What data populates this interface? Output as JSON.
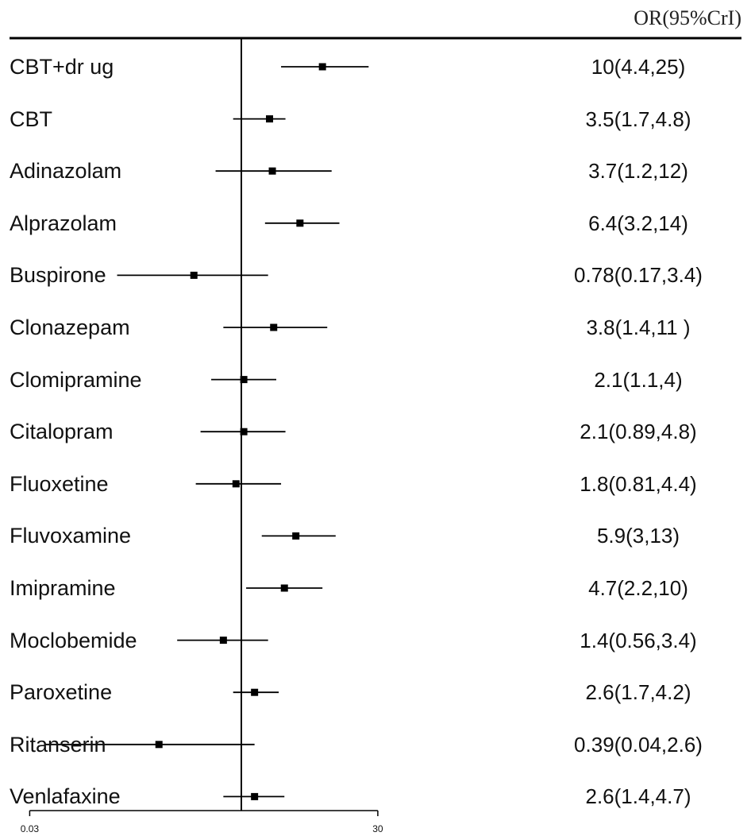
{
  "chart_data": {
    "type": "forest",
    "header": "OR(95%CrI)",
    "x_ticks": [
      "0.03",
      "30"
    ],
    "rows": [
      {
        "name": "CBT+dr ug",
        "or": 10,
        "lo": 4.4,
        "hi": 25,
        "text": "10(4.4,25)"
      },
      {
        "name": "CBT",
        "or": 3.5,
        "lo": 1.7,
        "hi": 4.8,
        "text": "3.5(1.7,4.8)"
      },
      {
        "name": "Adinazolam",
        "or": 3.7,
        "lo": 1.2,
        "hi": 12,
        "text": "3.7(1.2,12)"
      },
      {
        "name": "Alprazolam",
        "or": 6.4,
        "lo": 3.2,
        "hi": 14,
        "text": "6.4(3.2,14)"
      },
      {
        "name": "Buspirone",
        "or": 0.78,
        "lo": 0.17,
        "hi": 3.4,
        "text": "0.78(0.17,3.4)"
      },
      {
        "name": "Clonazepam",
        "or": 3.8,
        "lo": 1.4,
        "hi": 11,
        "text": "3.8(1.4,11 )"
      },
      {
        "name": "Clomipramine",
        "or": 2.1,
        "lo": 1.1,
        "hi": 4,
        "text": "2.1(1.1,4)"
      },
      {
        "name": "Citalopram",
        "or": 2.1,
        "lo": 0.89,
        "hi": 4.8,
        "text": "2.1(0.89,4.8)"
      },
      {
        "name": "Fluoxetine",
        "or": 1.8,
        "lo": 0.81,
        "hi": 4.4,
        "text": "1.8(0.81,4.4)"
      },
      {
        "name": "Fluvoxamine",
        "or": 5.9,
        "lo": 3,
        "hi": 13,
        "text": "5.9(3,13)"
      },
      {
        "name": "Imipramine",
        "or": 4.7,
        "lo": 2.2,
        "hi": 10,
        "text": "4.7(2.2,10)"
      },
      {
        "name": "Moclobemide",
        "or": 1.4,
        "lo": 0.56,
        "hi": 3.4,
        "text": "1.4(0.56,3.4)"
      },
      {
        "name": "Paroxetine",
        "or": 2.6,
        "lo": 1.7,
        "hi": 4.2,
        "text": "2.6(1.7,4.2)"
      },
      {
        "name": "Ritanserin",
        "or": 0.39,
        "lo": 0.04,
        "hi": 2.6,
        "text": "0.39(0.04,2.6)"
      },
      {
        "name": "Venlafaxine",
        "or": 2.6,
        "lo": 1.4,
        "hi": 4.7,
        "text": "2.6(1.4,4.7)"
      }
    ]
  }
}
